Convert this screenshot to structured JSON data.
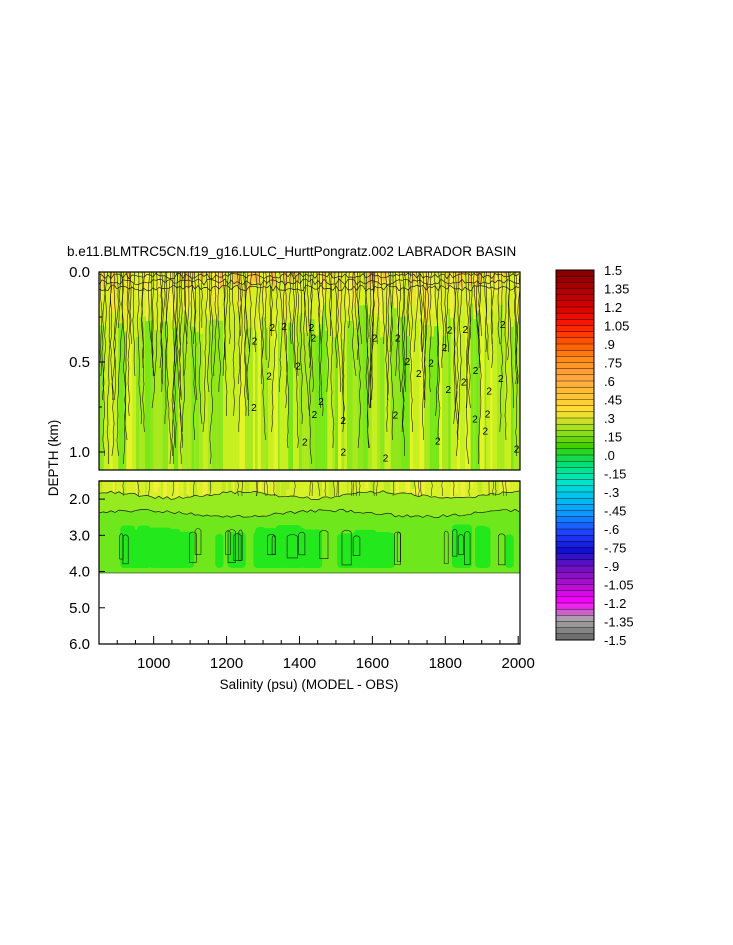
{
  "chart_data": {
    "type": "heatmap",
    "title": "b.e11.BLMTRC5CN.f19_g16.LULC_HurttPongratz.002 LABRADOR BASIN",
    "xlabel": "Salinity (psu) (MODEL - OBS)",
    "ylabel": "DEPTH (km)",
    "xlim": [
      850,
      2005
    ],
    "x_ticks": [
      "1000",
      "1200",
      "1400",
      "1600",
      "1800",
      "2000"
    ],
    "upper_panel": {
      "ylim": [
        0.0,
        1.1
      ],
      "y_ticks": [
        "0.0",
        "0.5",
        "1.0"
      ]
    },
    "lower_panel": {
      "ylim": [
        1.5,
        6.0
      ],
      "data_bottom": 3.9,
      "y_ticks": [
        "2.0",
        "3.0",
        "4.0",
        "5.0",
        "6.0"
      ]
    },
    "contour_label": "2",
    "colorbar": {
      "min": -1.5,
      "max": 1.5,
      "labels": [
        "1.5",
        "1.35",
        "1.2",
        "1.05",
        ".9",
        ".75",
        ".6",
        ".45",
        ".3",
        ".15",
        ".0",
        "-.15",
        "-.3",
        "-.45",
        "-.6",
        "-.75",
        "-.9",
        "-1.05",
        "-1.2",
        "-1.35",
        "-1.5"
      ],
      "colors": [
        "#8b0000",
        "#b00000",
        "#d80000",
        "#ff1a00",
        "#ff5500",
        "#ff8c1a",
        "#ffa640",
        "#ffc233",
        "#ffe033",
        "#a0e020",
        "#40d000",
        "#00e070",
        "#00e8c8",
        "#00c0f0",
        "#1090ff",
        "#2040ff",
        "#1010d0",
        "#7010c0",
        "#b010d0",
        "#ff00ff",
        "#a8a8a8",
        "#707070"
      ]
    }
  }
}
